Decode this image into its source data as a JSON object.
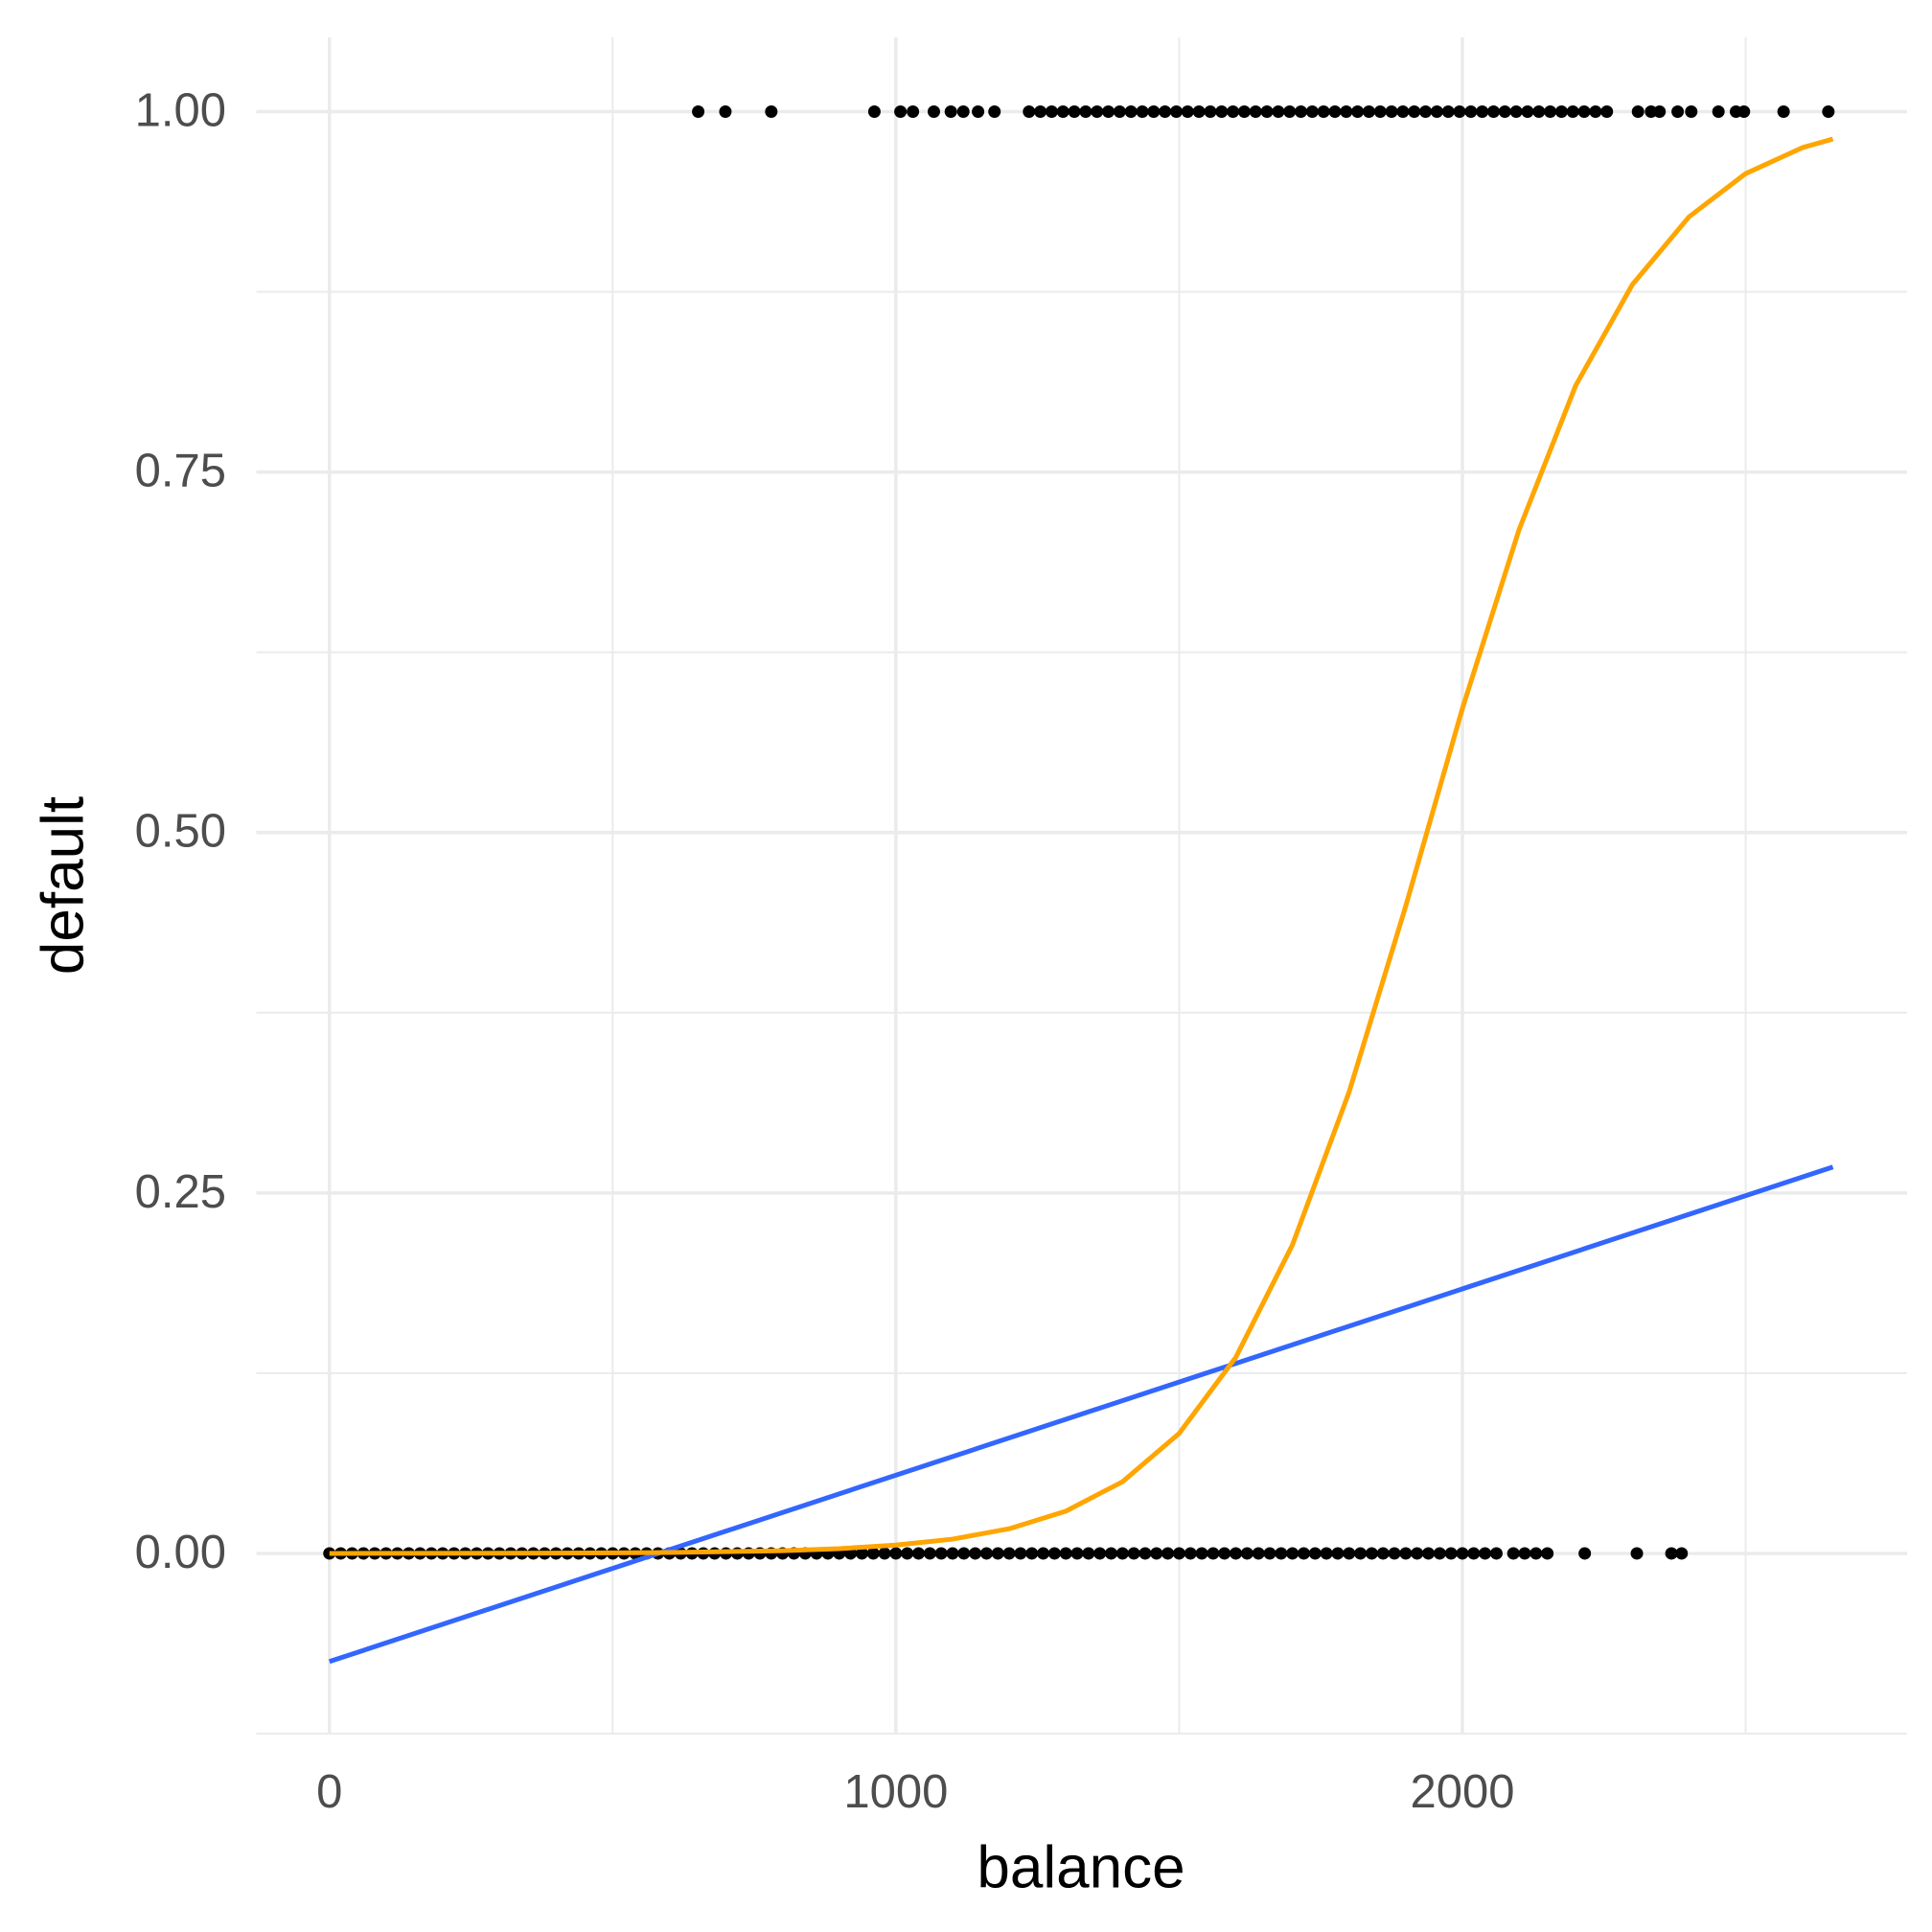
{
  "chart_data": {
    "type": "scatter",
    "x_label": "balance",
    "y_label": "default",
    "xlim": [
      -129,
      2785
    ],
    "ylim": [
      -0.125,
      1.0515
    ],
    "xticks": [
      0,
      1000,
      2000
    ],
    "yticks": [
      {
        "value": 0,
        "label": "0.00"
      },
      {
        "value": 0.25,
        "label": "0.25"
      },
      {
        "value": 0.5,
        "label": "0.50"
      },
      {
        "value": 0.75,
        "label": "0.75"
      },
      {
        "value": 1,
        "label": "1.00"
      }
    ],
    "x_minor_grid": [
      500,
      1500,
      2500
    ],
    "y_minor_grid": [
      -0.125,
      0.125,
      0.375,
      0.625,
      0.875
    ],
    "grid": true,
    "color": "#000000",
    "x": [
      651,
      699,
      780,
      962,
      1008,
      1030,
      1067,
      1097,
      1119,
      1145,
      1174,
      1235,
      1255,
      1275,
      1295,
      1315,
      1335,
      1355,
      1375,
      1395,
      1415,
      1435,
      1455,
      1475,
      1495,
      1515,
      1535,
      1555,
      1575,
      1595,
      1615,
      1635,
      1655,
      1675,
      1695,
      1715,
      1735,
      1755,
      1775,
      1795,
      1815,
      1835,
      1855,
      1875,
      1895,
      1915,
      1935,
      1955,
      1975,
      1995,
      2015,
      2035,
      2055,
      2075,
      2095,
      2115,
      2135,
      2155,
      2175,
      2195,
      2215,
      2235,
      2255,
      2310,
      2333,
      2348,
      2380,
      2404,
      2452,
      2483,
      2497,
      2567,
      2646,
      0,
      20,
      40,
      60,
      80,
      100,
      120,
      140,
      160,
      180,
      200,
      220,
      240,
      260,
      280,
      300,
      320,
      340,
      360,
      380,
      400,
      420,
      440,
      460,
      480,
      500,
      520,
      540,
      560,
      580,
      600,
      620,
      640,
      660,
      680,
      700,
      720,
      740,
      760,
      780,
      800,
      820,
      840,
      860,
      880,
      900,
      920,
      940,
      960,
      980,
      1000,
      1020,
      1040,
      1060,
      1080,
      1100,
      1120,
      1140,
      1160,
      1180,
      1200,
      1220,
      1240,
      1260,
      1280,
      1300,
      1320,
      1340,
      1360,
      1380,
      1400,
      1420,
      1440,
      1460,
      1480,
      1500,
      1520,
      1540,
      1560,
      1580,
      1600,
      1620,
      1640,
      1660,
      1680,
      1700,
      1720,
      1740,
      1760,
      1780,
      1800,
      1820,
      1840,
      1860,
      1880,
      1900,
      1920,
      1940,
      1960,
      1980,
      2000,
      2020,
      2040,
      2060,
      2090,
      2110,
      2130,
      2150,
      2216,
      2308,
      2369,
      2387
    ],
    "y": [
      1,
      1,
      1,
      1,
      1,
      1,
      1,
      1,
      1,
      1,
      1,
      1,
      1,
      1,
      1,
      1,
      1,
      1,
      1,
      1,
      1,
      1,
      1,
      1,
      1,
      1,
      1,
      1,
      1,
      1,
      1,
      1,
      1,
      1,
      1,
      1,
      1,
      1,
      1,
      1,
      1,
      1,
      1,
      1,
      1,
      1,
      1,
      1,
      1,
      1,
      1,
      1,
      1,
      1,
      1,
      1,
      1,
      1,
      1,
      1,
      1,
      1,
      1,
      1,
      1,
      1,
      1,
      1,
      1,
      1,
      1,
      1,
      1,
      0,
      0,
      0,
      0,
      0,
      0,
      0,
      0,
      0,
      0,
      0,
      0,
      0,
      0,
      0,
      0,
      0,
      0,
      0,
      0,
      0,
      0,
      0,
      0,
      0,
      0,
      0,
      0,
      0,
      0,
      0,
      0,
      0,
      0,
      0,
      0,
      0,
      0,
      0,
      0,
      0,
      0,
      0,
      0,
      0,
      0,
      0,
      0,
      0,
      0,
      0,
      0,
      0,
      0,
      0,
      0,
      0,
      0,
      0,
      0,
      0,
      0,
      0,
      0,
      0,
      0,
      0,
      0,
      0,
      0,
      0,
      0,
      0,
      0,
      0,
      0,
      0,
      0,
      0,
      0,
      0,
      0,
      0,
      0,
      0,
      0,
      0,
      0,
      0,
      0,
      0,
      0,
      0,
      0,
      0,
      0,
      0,
      0,
      0,
      0,
      0,
      0,
      0,
      0,
      0,
      0,
      0,
      0,
      0,
      0,
      0,
      0
    ],
    "lines": [
      {
        "type": "line",
        "color": "#3366FF",
        "x": [
          0,
          2654
        ],
        "values": [
          -0.075,
          0.268
        ]
      },
      {
        "type": "line",
        "color": "#FFA500",
        "x": [
          0,
          400,
          600,
          800,
          900,
          1000,
          1100,
          1200,
          1300,
          1400,
          1500,
          1600,
          1700,
          1800,
          1900,
          2000,
          2100,
          2200,
          2300,
          2400,
          2500,
          2600,
          2654
        ],
        "values": [
          0,
          0.0002,
          0.0006,
          0.0019,
          0.0033,
          0.0058,
          0.0099,
          0.0171,
          0.0293,
          0.0497,
          0.0832,
          0.136,
          0.214,
          0.32,
          0.449,
          0.586,
          0.71,
          0.81,
          0.88,
          0.927,
          0.957,
          0.975,
          0.981
        ]
      }
    ]
  }
}
